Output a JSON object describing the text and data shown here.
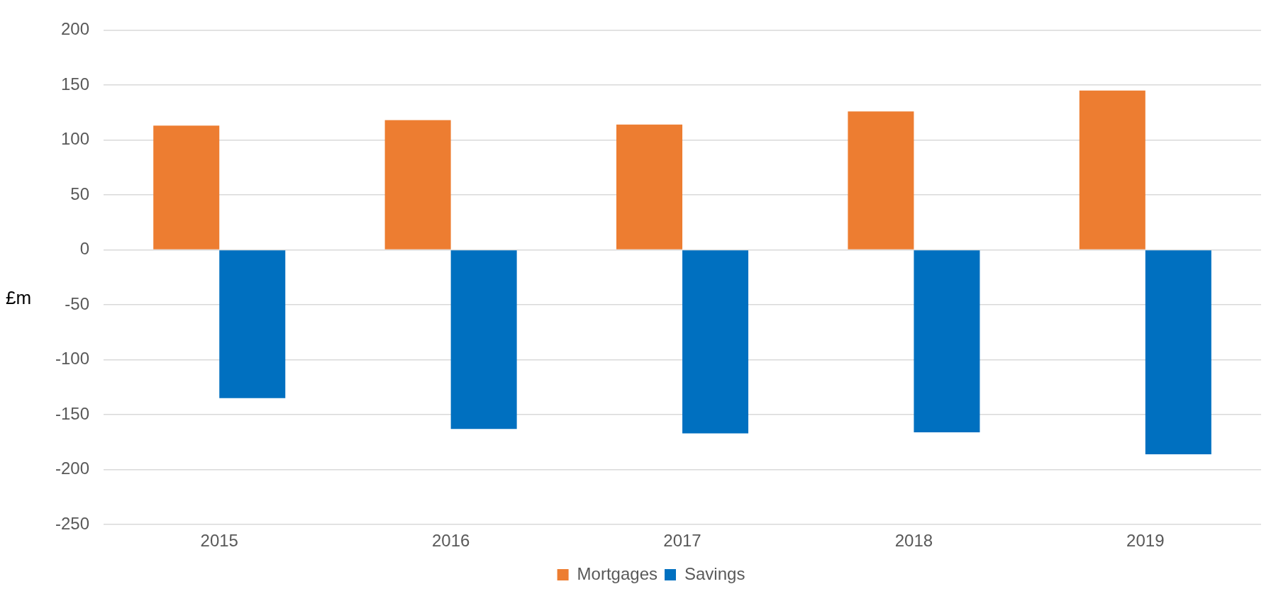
{
  "chart_data": {
    "type": "bar",
    "ylabel": "£m",
    "categories": [
      "2015",
      "2016",
      "2017",
      "2018",
      "2019"
    ],
    "series": [
      {
        "name": "Mortgages",
        "color": "#ed7d31",
        "values": [
          113,
          118,
          114,
          126,
          145
        ]
      },
      {
        "name": "Savings",
        "color": "#0070c0",
        "values": [
          -135,
          -163,
          -167,
          -166,
          -186
        ]
      }
    ],
    "ylim": [
      -250,
      200
    ],
    "yticks": [
      -250,
      -200,
      -150,
      -100,
      -50,
      0,
      50,
      100,
      150,
      200
    ],
    "grid": "y",
    "legend": "bottom"
  }
}
